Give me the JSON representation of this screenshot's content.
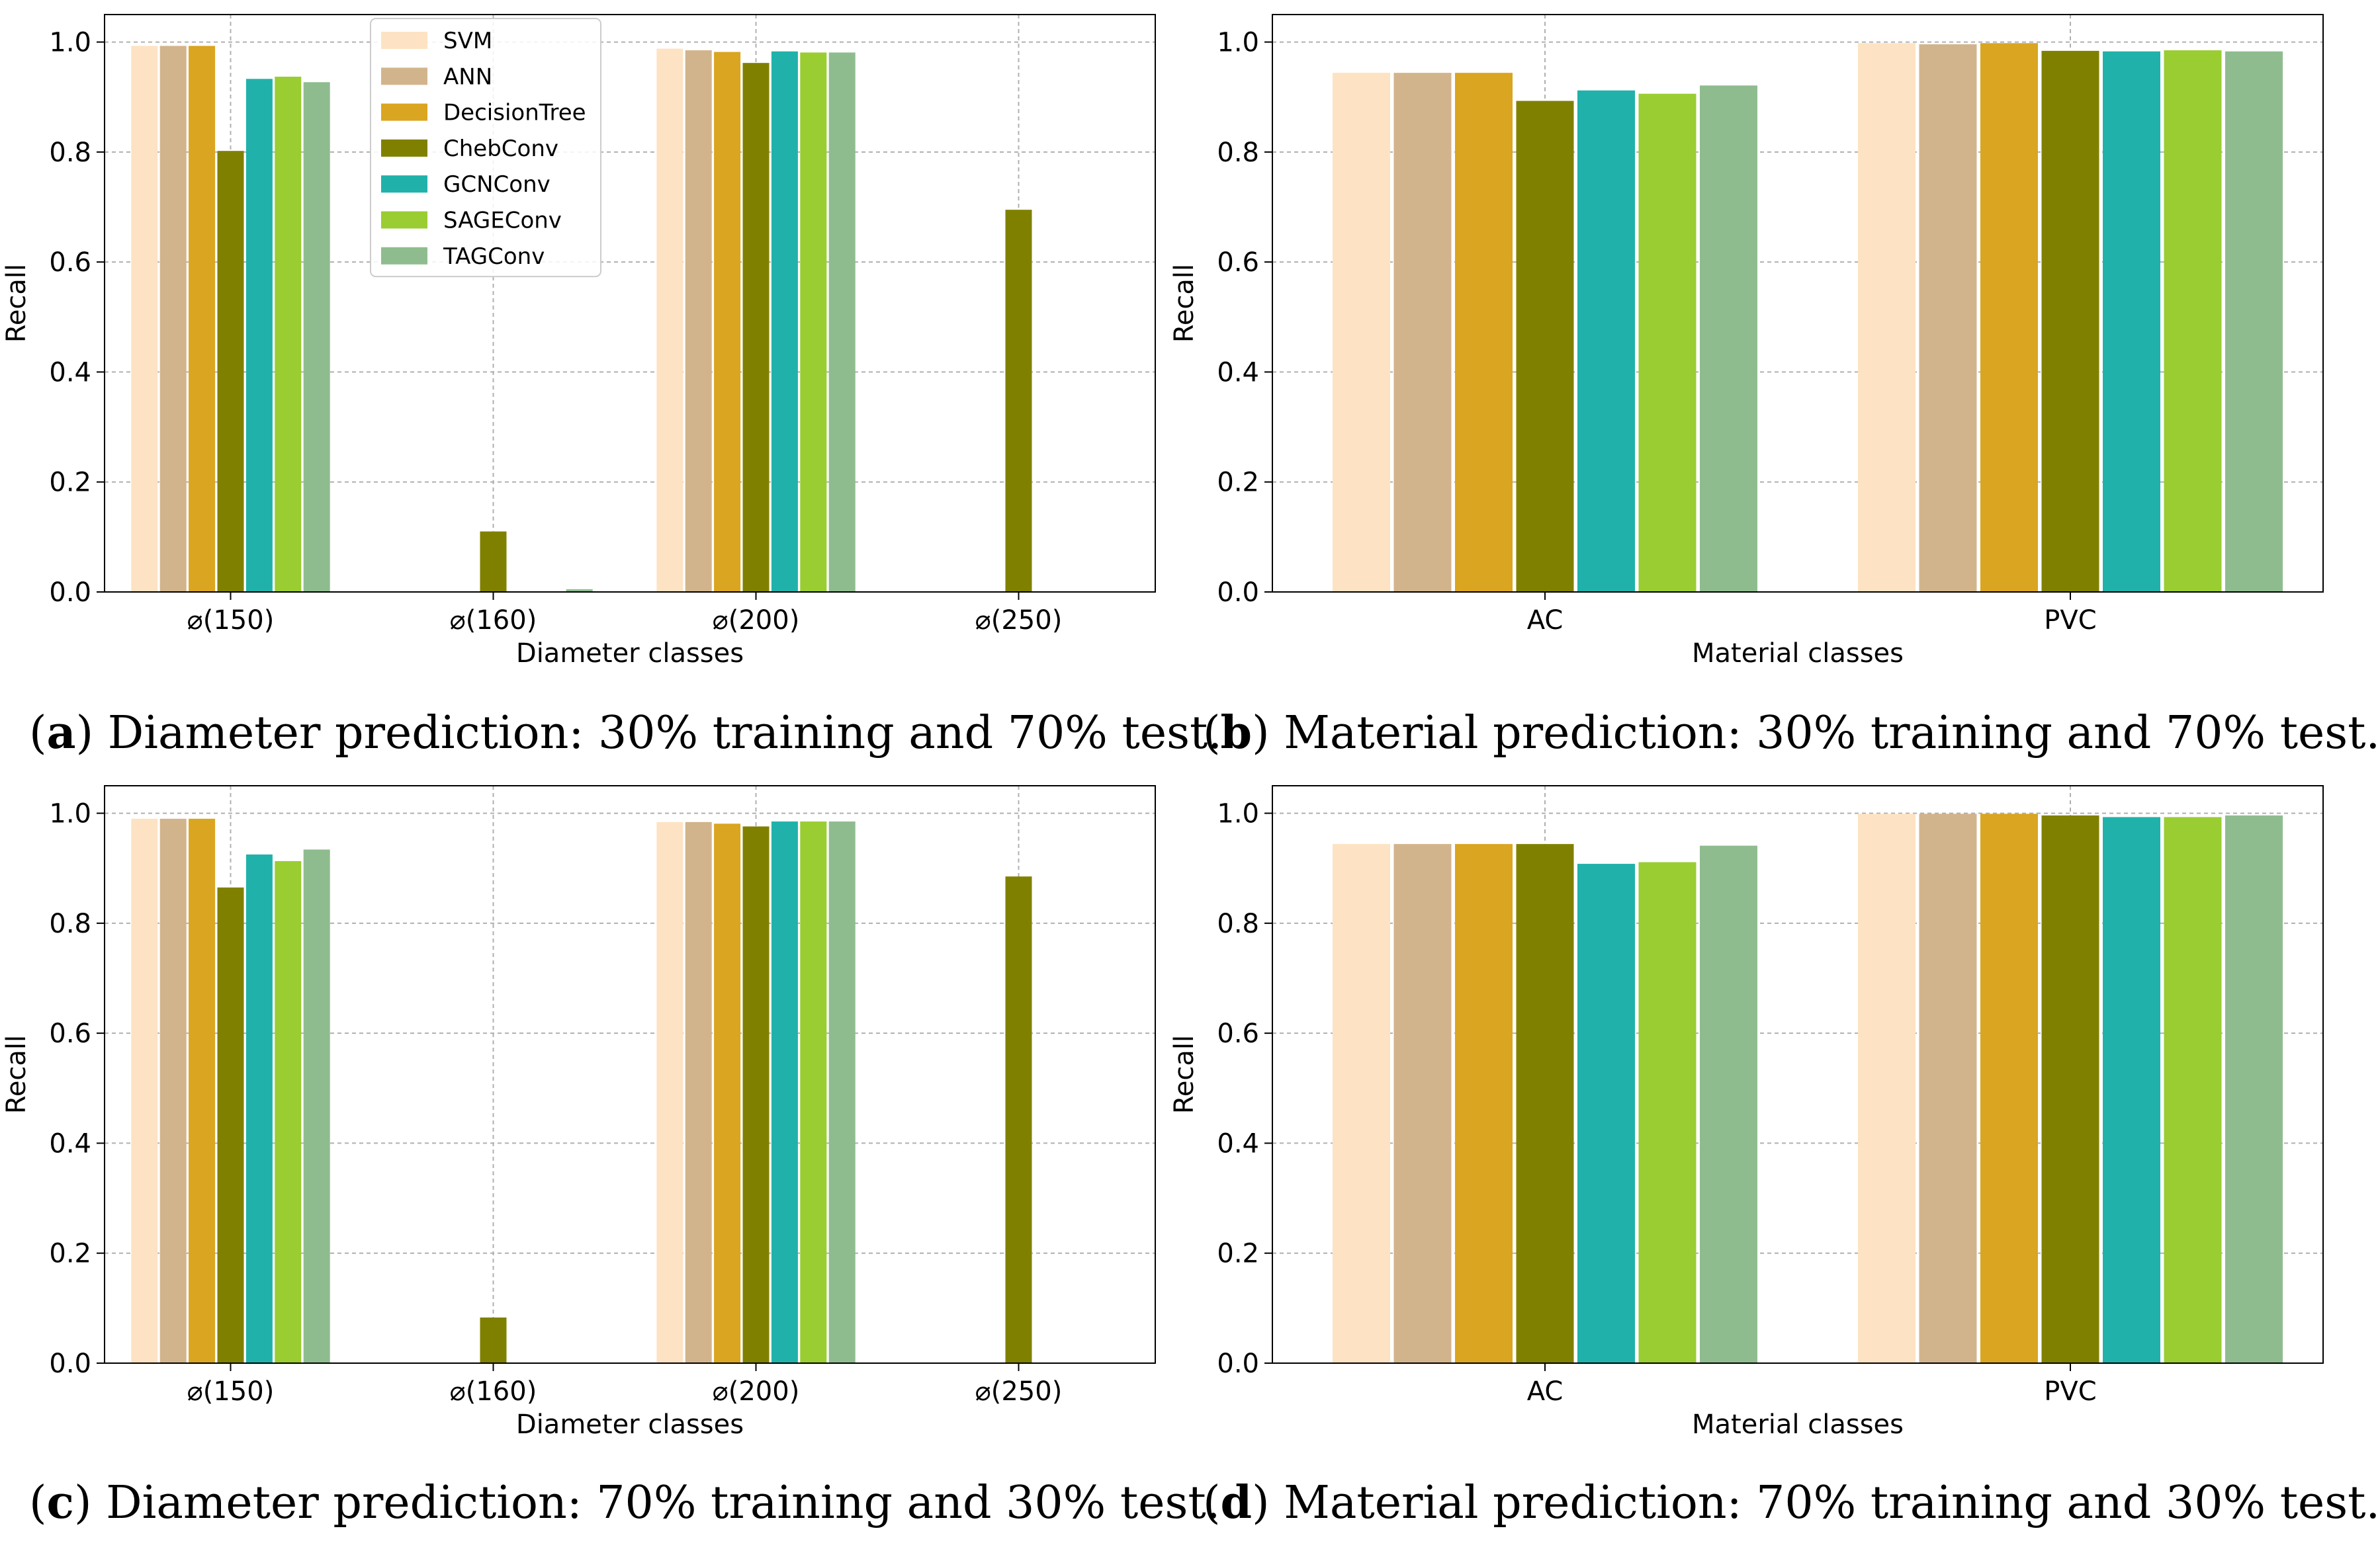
{
  "series_names": [
    "SVM",
    "ANN",
    "DecisionTree",
    "ChebConv",
    "GCNConv",
    "SAGEConv",
    "TAGConv"
  ],
  "series_colors": [
    "#fde3c3",
    "#d2b48c",
    "#daa520",
    "#808000",
    "#20b2aa",
    "#9acd32",
    "#8fbc8f"
  ],
  "chart_data": [
    {
      "type": "bar",
      "panel": "a",
      "xlabel": "Diameter classes",
      "ylabel": "Recall",
      "ylim": [
        0,
        1.05
      ],
      "yticks": [
        "0.0",
        "0.2",
        "0.4",
        "0.6",
        "0.8",
        "1.0"
      ],
      "categories": [
        "⌀(150)",
        "⌀(160)",
        "⌀(200)",
        "⌀(250)"
      ],
      "series": [
        {
          "name": "SVM",
          "values": [
            0.993,
            0,
            0.988,
            0
          ]
        },
        {
          "name": "ANN",
          "values": [
            0.993,
            0,
            0.985,
            0
          ]
        },
        {
          "name": "DecisionTree",
          "values": [
            0.993,
            0,
            0.982,
            0
          ]
        },
        {
          "name": "ChebConv",
          "values": [
            0.802,
            0.11,
            0.962,
            0.695
          ]
        },
        {
          "name": "GCNConv",
          "values": [
            0.933,
            0,
            0.983,
            0
          ]
        },
        {
          "name": "SAGEConv",
          "values": [
            0.937,
            0,
            0.981,
            0
          ]
        },
        {
          "name": "TAGConv",
          "values": [
            0.927,
            0.005,
            0.981,
            0
          ]
        }
      ],
      "legend": "top-left"
    },
    {
      "type": "bar",
      "panel": "b",
      "xlabel": "Material classes",
      "ylabel": "Recall",
      "ylim": [
        0,
        1.05
      ],
      "yticks": [
        "0.0",
        "0.2",
        "0.4",
        "0.6",
        "0.8",
        "1.0"
      ],
      "categories": [
        "AC",
        "PVC"
      ],
      "series": [
        {
          "name": "SVM",
          "values": [
            0.944,
            0.998
          ]
        },
        {
          "name": "ANN",
          "values": [
            0.944,
            0.996
          ]
        },
        {
          "name": "DecisionTree",
          "values": [
            0.944,
            0.998
          ]
        },
        {
          "name": "ChebConv",
          "values": [
            0.893,
            0.984
          ]
        },
        {
          "name": "GCNConv",
          "values": [
            0.912,
            0.983
          ]
        },
        {
          "name": "SAGEConv",
          "values": [
            0.906,
            0.985
          ]
        },
        {
          "name": "TAGConv",
          "values": [
            0.921,
            0.983
          ]
        }
      ]
    },
    {
      "type": "bar",
      "panel": "c",
      "xlabel": "Diameter classes",
      "ylabel": "Recall",
      "ylim": [
        0,
        1.05
      ],
      "yticks": [
        "0.0",
        "0.2",
        "0.4",
        "0.6",
        "0.8",
        "1.0"
      ],
      "categories": [
        "⌀(150)",
        "⌀(160)",
        "⌀(200)",
        "⌀(250)"
      ],
      "series": [
        {
          "name": "SVM",
          "values": [
            0.99,
            0,
            0.984,
            0
          ]
        },
        {
          "name": "ANN",
          "values": [
            0.99,
            0,
            0.984,
            0
          ]
        },
        {
          "name": "DecisionTree",
          "values": [
            0.99,
            0,
            0.981,
            0
          ]
        },
        {
          "name": "ChebConv",
          "values": [
            0.865,
            0.083,
            0.976,
            0.885
          ]
        },
        {
          "name": "GCNConv",
          "values": [
            0.925,
            0,
            0.985,
            0
          ]
        },
        {
          "name": "SAGEConv",
          "values": [
            0.913,
            0,
            0.985,
            0
          ]
        },
        {
          "name": "TAGConv",
          "values": [
            0.934,
            0,
            0.985,
            0
          ]
        }
      ]
    },
    {
      "type": "bar",
      "panel": "d",
      "xlabel": "Material classes",
      "ylabel": "Recall",
      "ylim": [
        0,
        1.05
      ],
      "yticks": [
        "0.0",
        "0.2",
        "0.4",
        "0.6",
        "0.8",
        "1.0"
      ],
      "categories": [
        "AC",
        "PVC"
      ],
      "series": [
        {
          "name": "SVM",
          "values": [
            0.944,
            0.999
          ]
        },
        {
          "name": "ANN",
          "values": [
            0.944,
            0.999
          ]
        },
        {
          "name": "DecisionTree",
          "values": [
            0.944,
            0.999
          ]
        },
        {
          "name": "ChebConv",
          "values": [
            0.944,
            0.996
          ]
        },
        {
          "name": "GCNConv",
          "values": [
            0.908,
            0.993
          ]
        },
        {
          "name": "SAGEConv",
          "values": [
            0.911,
            0.993
          ]
        },
        {
          "name": "TAGConv",
          "values": [
            0.941,
            0.996
          ]
        }
      ]
    }
  ],
  "captions": [
    {
      "letter": "a",
      "text": "Diameter prediction: 30% training and 70% test."
    },
    {
      "letter": "b",
      "text": "Material prediction: 30% training and 70% test."
    },
    {
      "letter": "c",
      "text": "Diameter prediction: 70% training and 30% test."
    },
    {
      "letter": "d",
      "text": "Material prediction: 70% training and 30% test."
    }
  ]
}
